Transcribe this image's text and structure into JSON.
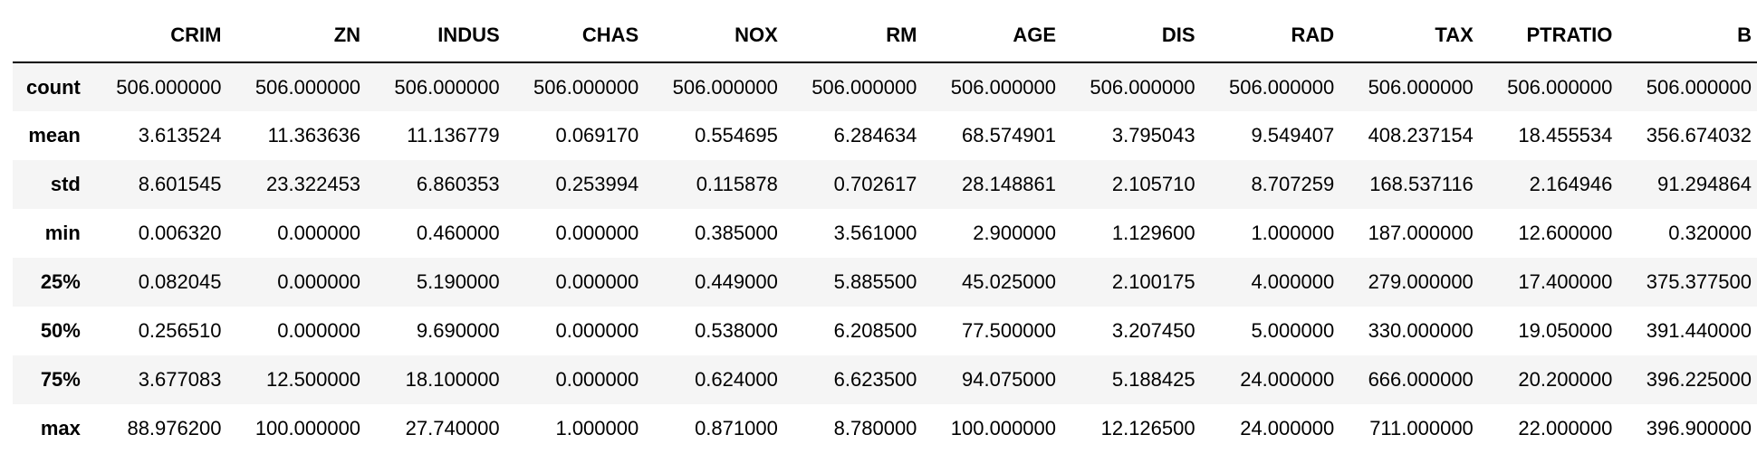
{
  "table": {
    "columns": [
      "CRIM",
      "ZN",
      "INDUS",
      "CHAS",
      "NOX",
      "RM",
      "AGE",
      "DIS",
      "RAD",
      "TAX",
      "PTRATIO",
      "B"
    ],
    "rows": [
      {
        "label": "count",
        "values": [
          "506.000000",
          "506.000000",
          "506.000000",
          "506.000000",
          "506.000000",
          "506.000000",
          "506.000000",
          "506.000000",
          "506.000000",
          "506.000000",
          "506.000000",
          "506.000000"
        ]
      },
      {
        "label": "mean",
        "values": [
          "3.613524",
          "11.363636",
          "11.136779",
          "0.069170",
          "0.554695",
          "6.284634",
          "68.574901",
          "3.795043",
          "9.549407",
          "408.237154",
          "18.455534",
          "356.674032"
        ]
      },
      {
        "label": "std",
        "values": [
          "8.601545",
          "23.322453",
          "6.860353",
          "0.253994",
          "0.115878",
          "0.702617",
          "28.148861",
          "2.105710",
          "8.707259",
          "168.537116",
          "2.164946",
          "91.294864"
        ]
      },
      {
        "label": "min",
        "values": [
          "0.006320",
          "0.000000",
          "0.460000",
          "0.000000",
          "0.385000",
          "3.561000",
          "2.900000",
          "1.129600",
          "1.000000",
          "187.000000",
          "12.600000",
          "0.320000"
        ]
      },
      {
        "label": "25%",
        "values": [
          "0.082045",
          "0.000000",
          "5.190000",
          "0.000000",
          "0.449000",
          "5.885500",
          "45.025000",
          "2.100175",
          "4.000000",
          "279.000000",
          "17.400000",
          "375.377500"
        ]
      },
      {
        "label": "50%",
        "values": [
          "0.256510",
          "0.000000",
          "9.690000",
          "0.000000",
          "0.538000",
          "6.208500",
          "77.500000",
          "3.207450",
          "5.000000",
          "330.000000",
          "19.050000",
          "391.440000"
        ]
      },
      {
        "label": "75%",
        "values": [
          "3.677083",
          "12.500000",
          "18.100000",
          "0.000000",
          "0.624000",
          "6.623500",
          "94.075000",
          "5.188425",
          "24.000000",
          "666.000000",
          "20.200000",
          "396.225000"
        ]
      },
      {
        "label": "max",
        "values": [
          "88.976200",
          "100.000000",
          "27.740000",
          "1.000000",
          "0.871000",
          "8.780000",
          "100.000000",
          "12.126500",
          "24.000000",
          "711.000000",
          "22.000000",
          "396.900000"
        ]
      }
    ]
  }
}
